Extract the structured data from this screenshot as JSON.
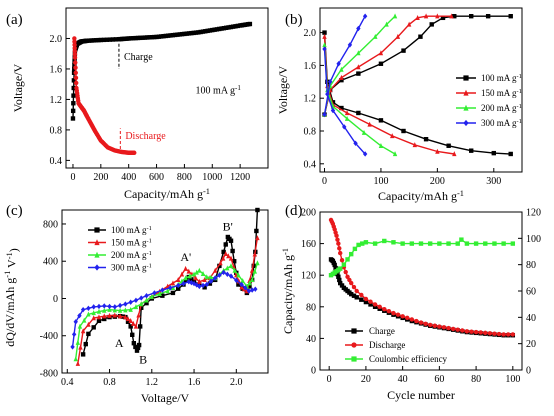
{
  "chart_data": [
    {
      "panel": "(a)",
      "type": "line",
      "xlabel": "Capacity/mAh g",
      "xlabel_sup": "-1",
      "ylabel": "Voltage/V",
      "xlim": [
        -50,
        1400
      ],
      "ylim": [
        0.3,
        2.4
      ],
      "xticks": [
        "0",
        "200",
        "400",
        "600",
        "800",
        "1000",
        "1200"
      ],
      "xtick_values": [
        0,
        200,
        400,
        600,
        800,
        1000,
        1200
      ],
      "yticks": [
        "0.4",
        "0.8",
        "1.2",
        "1.6",
        "2.0"
      ],
      "ytick_values": [
        0.4,
        0.8,
        1.2,
        1.6,
        2.0
      ],
      "annotation": "100 mA g",
      "annotation_sup": "-1",
      "series": [
        {
          "name": "Charge",
          "color": "#000000",
          "marker": "square",
          "label_color": "#000000",
          "x": [
            0,
            8,
            15,
            30,
            60,
            100,
            200,
            330,
            400,
            500,
            600,
            700,
            800,
            900,
            1000,
            1100,
            1200,
            1270
          ],
          "y": [
            0.95,
            1.55,
            1.85,
            1.93,
            1.96,
            1.97,
            1.98,
            1.99,
            2.0,
            2.01,
            2.02,
            2.04,
            2.06,
            2.08,
            2.11,
            2.14,
            2.17,
            2.19
          ]
        },
        {
          "name": "Discharge",
          "color": "#e8191c",
          "marker": "circle",
          "label_color": "#e8191c",
          "x": [
            10,
            15,
            25,
            40,
            60,
            80,
            100,
            130,
            160,
            200,
            250,
            300,
            350,
            400,
            440
          ],
          "y": [
            2.0,
            1.75,
            1.35,
            1.15,
            1.1,
            1.05,
            0.98,
            0.88,
            0.78,
            0.66,
            0.57,
            0.53,
            0.51,
            0.5,
            0.5
          ]
        }
      ]
    },
    {
      "panel": "(b)",
      "type": "line",
      "xlabel": "Capacity/mAh g",
      "xlabel_sup": "-1",
      "ylabel": "Voltage/V",
      "xlim": [
        -8,
        350
      ],
      "ylim": [
        0.3,
        2.3
      ],
      "xticks": [
        "0",
        "100",
        "200",
        "300"
      ],
      "xtick_values": [
        0,
        100,
        200,
        300
      ],
      "yticks": [
        "0.4",
        "0.8",
        "1.2",
        "1.6",
        "2.0"
      ],
      "ytick_values": [
        0.4,
        0.8,
        1.2,
        1.6,
        2.0
      ],
      "legend_position": "center-right",
      "series": [
        {
          "name": "100 mA g",
          "name_sup": "-1",
          "color": "#000000",
          "marker": "square",
          "charge_x": [
            0,
            10,
            30,
            60,
            100,
            140,
            170,
            190,
            210,
            230,
            260,
            290,
            330
          ],
          "charge_y": [
            1.0,
            1.3,
            1.42,
            1.5,
            1.62,
            1.78,
            1.95,
            2.1,
            2.18,
            2.2,
            2.2,
            2.2,
            2.2
          ],
          "discharge_x": [
            0,
            5,
            15,
            30,
            60,
            100,
            140,
            180,
            220,
            260,
            300,
            330
          ],
          "discharge_y": [
            2.0,
            1.4,
            1.15,
            1.08,
            1.02,
            0.93,
            0.8,
            0.7,
            0.62,
            0.56,
            0.53,
            0.52
          ]
        },
        {
          "name": "150 mA g",
          "name_sup": "-1",
          "color": "#e8191c",
          "marker": "triangle",
          "charge_x": [
            0,
            10,
            30,
            60,
            100,
            130,
            150,
            165,
            180,
            200,
            225
          ],
          "charge_y": [
            1.0,
            1.3,
            1.45,
            1.58,
            1.75,
            1.95,
            2.1,
            2.18,
            2.2,
            2.2,
            2.2
          ],
          "discharge_x": [
            0,
            5,
            15,
            40,
            80,
            120,
            160,
            200,
            230
          ],
          "discharge_y": [
            1.95,
            1.35,
            1.12,
            1.02,
            0.88,
            0.74,
            0.63,
            0.55,
            0.52
          ]
        },
        {
          "name": "200 mA g",
          "name_sup": "-1",
          "color": "#33ee33",
          "marker": "triangle",
          "charge_x": [
            0,
            10,
            30,
            60,
            90,
            110,
            125
          ],
          "charge_y": [
            1.0,
            1.35,
            1.55,
            1.75,
            1.95,
            2.1,
            2.2
          ],
          "discharge_x": [
            0,
            5,
            15,
            40,
            70,
            100,
            125
          ],
          "discharge_y": [
            1.85,
            1.3,
            1.1,
            0.95,
            0.78,
            0.62,
            0.52
          ]
        },
        {
          "name": "300 mA g",
          "name_sup": "-1",
          "color": "#2222ee",
          "marker": "diamond",
          "charge_x": [
            0,
            10,
            25,
            45,
            60,
            72
          ],
          "charge_y": [
            1.0,
            1.4,
            1.62,
            1.85,
            2.05,
            2.2
          ],
          "discharge_x": [
            0,
            5,
            15,
            35,
            55,
            72
          ],
          "discharge_y": [
            1.8,
            1.25,
            1.05,
            0.85,
            0.65,
            0.52
          ]
        }
      ]
    },
    {
      "panel": "(c)",
      "type": "line",
      "xlabel": "Voltage/V",
      "ylabel": "dQ/dV/mAh g",
      "ylabel_sup1": "-1",
      "ylabel_mid": " V",
      "ylabel_sup2": "-1",
      "ylabel_end": ")",
      "ylabel_open": "(",
      "xlim": [
        0.35,
        2.3
      ],
      "ylim": [
        -800,
        950
      ],
      "xticks": [
        "0.4",
        "0.8",
        "1.2",
        "1.6",
        "2.0"
      ],
      "xtick_values": [
        0.4,
        0.8,
        1.2,
        1.6,
        2.0
      ],
      "yticks": [
        "-800",
        "-400",
        "0",
        "400",
        "800"
      ],
      "ytick_values": [
        -800,
        -400,
        0,
        400,
        800
      ],
      "legend_position": "top-left",
      "peak_labels": [
        "A",
        "B",
        "A'",
        "B'"
      ],
      "series": [
        {
          "name": "100 mA g",
          "name_sup": "-1",
          "color": "#000000",
          "marker": "square",
          "x": [
            0.55,
            0.6,
            0.7,
            0.8,
            0.9,
            0.95,
            1.0,
            1.03,
            1.06,
            1.08,
            1.1,
            1.2,
            1.4,
            1.5,
            1.55,
            1.6,
            1.7,
            1.8,
            1.88,
            1.92,
            1.95,
            1.98,
            2.02,
            2.1,
            2.15,
            2.18,
            2.2
          ],
          "y": [
            -600,
            -380,
            -240,
            -200,
            -190,
            -200,
            -300,
            -480,
            -560,
            -500,
            -100,
            0,
            60,
            150,
            230,
            180,
            120,
            200,
            500,
            660,
            620,
            400,
            150,
            60,
            200,
            500,
            950
          ]
        },
        {
          "name": "150 mA g",
          "name_sup": "-1",
          "color": "#e8191c",
          "marker": "triangle",
          "x": [
            0.5,
            0.55,
            0.65,
            0.75,
            0.85,
            0.95,
            1.0,
            1.05,
            1.1,
            1.2,
            1.35,
            1.45,
            1.52,
            1.58,
            1.65,
            1.75,
            1.85,
            1.9,
            1.95,
            2.0,
            2.05,
            2.1,
            2.15,
            2.2
          ],
          "y": [
            -700,
            -350,
            -210,
            -190,
            -180,
            -200,
            -240,
            -300,
            -60,
            20,
            130,
            200,
            320,
            260,
            180,
            220,
            380,
            480,
            430,
            250,
            120,
            80,
            300,
            650
          ]
        },
        {
          "name": "200 mA g",
          "name_sup": "-1",
          "color": "#33ee33",
          "marker": "triangle",
          "x": [
            0.48,
            0.52,
            0.6,
            0.7,
            0.8,
            0.9,
            1.0,
            1.1,
            1.2,
            1.35,
            1.45,
            1.52,
            1.6,
            1.65,
            1.72,
            1.8,
            1.88,
            1.95,
            2.02,
            2.1,
            2.15,
            2.2
          ],
          "y": [
            -650,
            -300,
            -170,
            -140,
            -120,
            -130,
            -120,
            -60,
            20,
            80,
            150,
            220,
            260,
            300,
            230,
            220,
            300,
            350,
            250,
            130,
            200,
            380
          ]
        },
        {
          "name": "300 mA g",
          "name_sup": "-1",
          "color": "#2222ee",
          "marker": "diamond",
          "x": [
            0.45,
            0.48,
            0.55,
            0.65,
            0.75,
            0.85,
            0.95,
            1.05,
            1.15,
            1.3,
            1.45,
            1.55,
            1.6,
            1.65,
            1.72,
            1.8,
            1.88,
            1.95,
            2.05,
            2.12,
            2.18
          ],
          "y": [
            -520,
            -250,
            -120,
            -90,
            -80,
            -90,
            -60,
            -20,
            30,
            90,
            140,
            180,
            160,
            130,
            150,
            220,
            280,
            240,
            150,
            80,
            100
          ]
        }
      ]
    },
    {
      "panel": "(d)",
      "type": "scatter",
      "xlabel": "Cycle number",
      "ylabel": "Capacity/mAh g",
      "ylabel_sup": "-1",
      "y2label": "Coulombic efficiency/%",
      "xlim": [
        -5,
        105
      ],
      "ylim": [
        0,
        200
      ],
      "y2lim": [
        0,
        120
      ],
      "xticks": [
        "0",
        "20",
        "40",
        "60",
        "80",
        "100"
      ],
      "xtick_values": [
        0,
        20,
        40,
        60,
        80,
        100
      ],
      "yticks": [
        "0",
        "40",
        "80",
        "120",
        "160",
        "200"
      ],
      "ytick_values": [
        0,
        40,
        80,
        120,
        160,
        200
      ],
      "y2ticks": [
        "0",
        "20",
        "40",
        "60",
        "80",
        "100",
        "120"
      ],
      "y2tick_values": [
        0,
        20,
        40,
        60,
        80,
        100,
        120
      ],
      "y2_color": "#33cc33",
      "legend_position": "bottom-center",
      "series": [
        {
          "name": "Charge",
          "color": "#000000",
          "marker": "square",
          "axis": "left",
          "x": [
            1,
            2,
            3,
            4,
            5,
            6,
            8,
            10,
            12,
            15,
            20,
            25,
            30,
            35,
            40,
            45,
            50,
            55,
            60,
            65,
            70,
            75,
            80,
            85,
            90,
            95,
            100
          ],
          "y": [
            140,
            138,
            133,
            125,
            118,
            110,
            104,
            100,
            96,
            92,
            86,
            80,
            75,
            70,
            66,
            62,
            59,
            56,
            54,
            52,
            50,
            48,
            47,
            46,
            45,
            44,
            44
          ]
        },
        {
          "name": "Discharge",
          "color": "#e8191c",
          "marker": "circle",
          "axis": "left",
          "x": [
            1,
            2,
            3,
            4,
            5,
            6,
            8,
            10,
            12,
            15,
            20,
            25,
            30,
            35,
            40,
            45,
            50,
            55,
            60,
            65,
            70,
            75,
            80,
            85,
            90,
            95,
            100
          ],
          "y": [
            190,
            185,
            178,
            170,
            160,
            148,
            130,
            118,
            110,
            100,
            90,
            83,
            77,
            72,
            68,
            64,
            60,
            57,
            55,
            53,
            51,
            49,
            48,
            47,
            46,
            45,
            45
          ]
        },
        {
          "name": "Coulombic efficiency",
          "color": "#33ee33",
          "marker": "square",
          "axis": "right",
          "x": [
            1,
            2,
            3,
            4,
            5,
            6,
            8,
            10,
            12,
            14,
            16,
            18,
            20,
            25,
            30,
            35,
            40,
            45,
            50,
            55,
            60,
            65,
            70,
            72,
            75,
            80,
            85,
            90,
            95,
            100
          ],
          "y": [
            72,
            73,
            74,
            75,
            76,
            77,
            80,
            84,
            88,
            92,
            95,
            96,
            97,
            96,
            98,
            97,
            96,
            96,
            96,
            96,
            96,
            96,
            96,
            99,
            96,
            96,
            96,
            96,
            96,
            96
          ]
        }
      ]
    }
  ]
}
